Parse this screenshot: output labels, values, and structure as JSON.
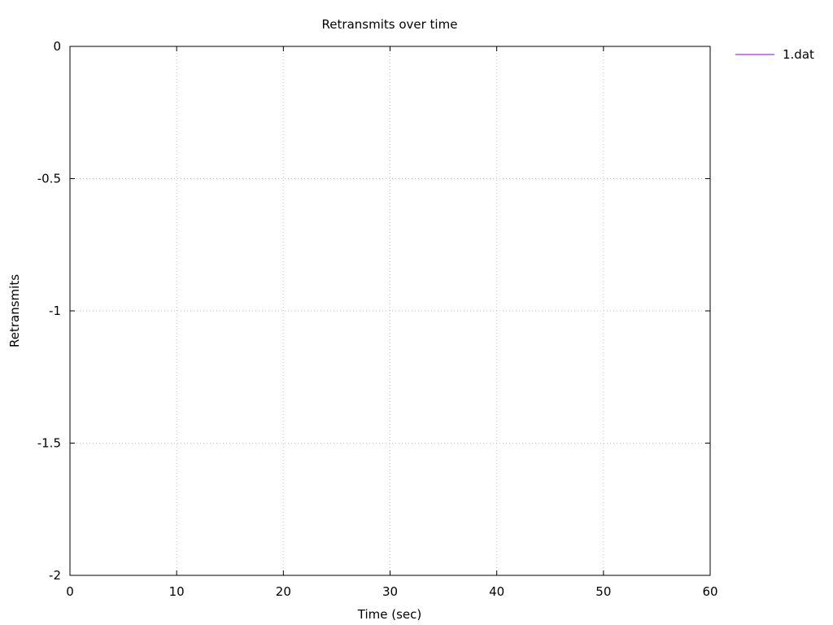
{
  "chart_data": {
    "type": "line",
    "title": "Retransmits over time",
    "xlabel": "Time (sec)",
    "ylabel": "Retransmits",
    "xlim": [
      0,
      60
    ],
    "ylim": [
      -2,
      0
    ],
    "xticks": [
      0,
      10,
      20,
      30,
      40,
      50,
      60
    ],
    "yticks": [
      0,
      -0.5,
      -1,
      -1.5,
      -2
    ],
    "xtick_labels": [
      "0",
      "10",
      "20",
      "30",
      "40",
      "50",
      "60"
    ],
    "ytick_labels": [
      "0",
      "-0.5",
      "-1",
      "-1.5",
      "-2"
    ],
    "grid": true,
    "legend_position": "outside top-right",
    "series": [
      {
        "name": "1.dat",
        "color": "#9400d3",
        "x": [],
        "y": []
      }
    ]
  }
}
